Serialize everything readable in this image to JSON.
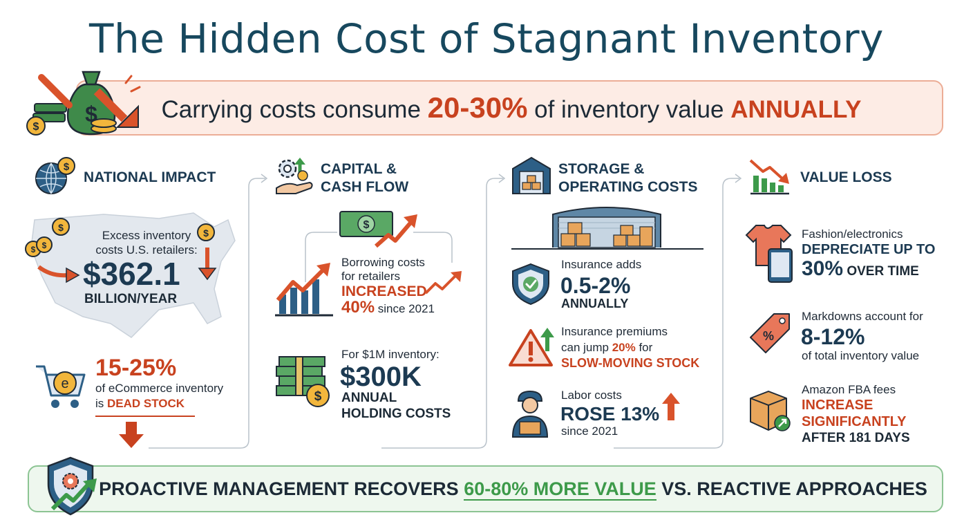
{
  "title": "The Hidden Cost of Stagnant Inventory",
  "banner": {
    "prefix": "Carrying costs consume ",
    "highlight": "20-30%",
    "middle": " of inventory value ",
    "suffix": "ANNUALLY"
  },
  "national": {
    "header": "NATIONAL IMPACT",
    "intro_line1": "Excess inventory",
    "intro_line2": "costs U.S. retailers:",
    "amount": "$362.1",
    "amount_unit": "BILLION/YEAR",
    "dead_pct": "15-25%",
    "dead_line1": "of eCommerce inventory",
    "dead_prefix": "is ",
    "dead_highlight": "DEAD STOCK"
  },
  "capital": {
    "header_line1": "CAPITAL &",
    "header_line2": "CASH FLOW",
    "borrow_line1": "Borrowing costs",
    "borrow_line2": "for retailers",
    "borrow_increased": "INCREASED",
    "borrow_pct": "40%",
    "borrow_since": " since 2021",
    "holding_intro": "For $1M inventory:",
    "holding_amount": "$300K",
    "holding_line1": "ANNUAL",
    "holding_line2": "HOLDING COSTS"
  },
  "storage": {
    "header_line1": "STORAGE &",
    "header_line2": "OPERATING COSTS",
    "insurance_intro": "Insurance adds",
    "insurance_range": "0.5-2%",
    "insurance_unit": "ANNUALLY",
    "premium_line1": "Insurance premiums",
    "premium_prefix": "can jump ",
    "premium_pct": "20%",
    "premium_for": " for",
    "premium_highlight": "SLOW-MOVING STOCK",
    "labor_intro": "Labor costs",
    "labor_value": "ROSE 13%",
    "labor_since": "since 2021"
  },
  "value_loss": {
    "header": "VALUE LOSS",
    "fashion_intro": "Fashion/electronics",
    "fashion_line1": "DEPRECIATE UP TO",
    "fashion_pct": "30%",
    "fashion_suffix": " OVER TIME",
    "markdown_intro": "Markdowns account for",
    "markdown_range": "8-12%",
    "markdown_line": "of total inventory value",
    "fba_intro": "Amazon FBA fees",
    "fba_line1": "INCREASE",
    "fba_line2": "SIGNIFICANTLY",
    "fba_line3": "AFTER 181 DAYS"
  },
  "footer": {
    "prefix": "PROACTIVE MANAGEMENT RECOVERS ",
    "highlight": "60-80% MORE VALUE",
    "suffix": " VS. REACTIVE APPROACHES"
  },
  "colors": {
    "navy": "#17485e",
    "accent_red": "#c8421f",
    "accent_green": "#3d9a4a",
    "banner_bg": "#fdece5",
    "footer_bg": "#eef7ee"
  },
  "icons": [
    "money-bag-icon",
    "globe-coin-icon",
    "usa-map-icon",
    "ecommerce-cart-icon",
    "gear-hand-icon",
    "cash-growth-icon",
    "bar-chart-up-icon",
    "cash-stack-icon",
    "warehouse-icon",
    "shield-check-icon",
    "warning-icon",
    "worker-icon",
    "chart-down-icon",
    "shirt-tablet-icon",
    "price-tag-icon",
    "package-icon",
    "shield-gear-icon"
  ]
}
